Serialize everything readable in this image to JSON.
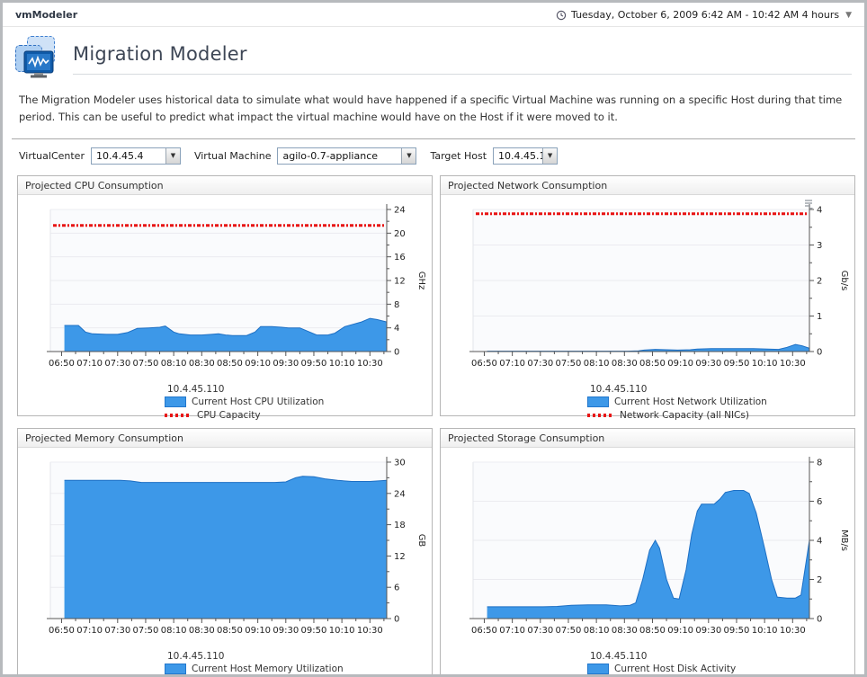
{
  "window": {
    "app_title": "vmModeler",
    "time_range": "Tuesday, October 6, 2009 6:42 AM - 10:42 AM 4 hours"
  },
  "page": {
    "title": "Migration Modeler",
    "description": "The Migration Modeler uses historical data to simulate what would have happened if a specific Virtual Machine was running on a specific Host during that time period. This can be useful to predict what impact the virtual machine would have on the Host if it were moved to it."
  },
  "controls": [
    {
      "label": "VirtualCenter",
      "value": "10.4.45.4"
    },
    {
      "label": "Virtual Machine",
      "value": "agilo-0.7-appliance"
    },
    {
      "label": "Target Host",
      "value": "10.4.45.110"
    }
  ],
  "colors": {
    "area_fill": "#3d98e8",
    "area_stroke": "#1d6fc4",
    "capacity": "#e81414",
    "grid": "#ebebf0",
    "axis": "#555555"
  },
  "chart_data": [
    {
      "type": "area",
      "title": "Projected CPU Consumption",
      "unit": "GHz",
      "ylim": [
        0,
        24
      ],
      "ytick_major": 4,
      "ytick_minor": 2,
      "capacity": 21.3,
      "host": "10.4.45.110",
      "legend": [
        {
          "swatch": "area",
          "label": "Current Host CPU Utilization"
        },
        {
          "swatch": "capacity",
          "label": "CPU Capacity"
        }
      ],
      "x_tick_labels": [
        "06:50",
        "07:10",
        "07:30",
        "07:50",
        "08:10",
        "08:30",
        "08:50",
        "09:10",
        "09:30",
        "09:50",
        "10:10",
        "10:30"
      ],
      "x_range_minutes": 240,
      "points": [
        [
          10,
          4.4
        ],
        [
          20,
          4.4
        ],
        [
          25,
          3.3
        ],
        [
          30,
          3.0
        ],
        [
          40,
          2.9
        ],
        [
          48,
          2.9
        ],
        [
          55,
          3.2
        ],
        [
          62,
          3.9
        ],
        [
          70,
          4.0
        ],
        [
          78,
          4.1
        ],
        [
          82,
          4.3
        ],
        [
          88,
          3.3
        ],
        [
          92,
          3.0
        ],
        [
          100,
          2.8
        ],
        [
          108,
          2.8
        ],
        [
          115,
          2.9
        ],
        [
          120,
          3.0
        ],
        [
          125,
          2.8
        ],
        [
          130,
          2.7
        ],
        [
          140,
          2.7
        ],
        [
          146,
          3.3
        ],
        [
          150,
          4.2
        ],
        [
          158,
          4.2
        ],
        [
          165,
          4.1
        ],
        [
          170,
          4.0
        ],
        [
          178,
          4.0
        ],
        [
          185,
          3.3
        ],
        [
          190,
          2.8
        ],
        [
          198,
          2.8
        ],
        [
          203,
          3.1
        ],
        [
          210,
          4.2
        ],
        [
          216,
          4.6
        ],
        [
          222,
          5.0
        ],
        [
          228,
          5.6
        ],
        [
          233,
          5.4
        ],
        [
          240,
          5.0
        ]
      ]
    },
    {
      "type": "area",
      "title": "Projected Network Consumption",
      "unit": "Gb/s",
      "ylim": [
        0,
        4
      ],
      "ytick_major": 1,
      "ytick_minor": 0.5,
      "capacity": 3.88,
      "host": "10.4.45.110",
      "legend": [
        {
          "swatch": "area",
          "label": "Current Host Network Utilization"
        },
        {
          "swatch": "capacity",
          "label": "Network Capacity (all NICs)"
        }
      ],
      "x_tick_labels": [
        "06:50",
        "07:10",
        "07:30",
        "07:50",
        "08:10",
        "08:30",
        "08:50",
        "09:10",
        "09:30",
        "09:50",
        "10:10",
        "10:30"
      ],
      "x_range_minutes": 240,
      "points": [
        [
          10,
          0.01
        ],
        [
          60,
          0.01
        ],
        [
          110,
          0.01
        ],
        [
          118,
          0.02
        ],
        [
          122,
          0.04
        ],
        [
          130,
          0.06
        ],
        [
          138,
          0.05
        ],
        [
          146,
          0.04
        ],
        [
          155,
          0.05
        ],
        [
          160,
          0.07
        ],
        [
          170,
          0.08
        ],
        [
          185,
          0.08
        ],
        [
          200,
          0.08
        ],
        [
          210,
          0.07
        ],
        [
          218,
          0.06
        ],
        [
          224,
          0.12
        ],
        [
          230,
          0.2
        ],
        [
          235,
          0.16
        ],
        [
          240,
          0.09
        ]
      ]
    },
    {
      "type": "area",
      "title": "Projected Memory Consumption",
      "unit": "GB",
      "ylim": [
        0,
        30
      ],
      "ytick_major": 6,
      "ytick_minor": 3,
      "capacity": null,
      "host": "10.4.45.110",
      "legend": [
        {
          "swatch": "area",
          "label": "Current Host Memory Utilization"
        }
      ],
      "x_tick_labels": [
        "06:50",
        "07:10",
        "07:30",
        "07:50",
        "08:10",
        "08:30",
        "08:50",
        "09:10",
        "09:30",
        "09:50",
        "10:10",
        "10:30"
      ],
      "x_range_minutes": 240,
      "points": [
        [
          10,
          26.5
        ],
        [
          30,
          26.5
        ],
        [
          50,
          26.5
        ],
        [
          57,
          26.4
        ],
        [
          65,
          26.1
        ],
        [
          80,
          26.1
        ],
        [
          100,
          26.1
        ],
        [
          120,
          26.1
        ],
        [
          140,
          26.1
        ],
        [
          160,
          26.1
        ],
        [
          168,
          26.2
        ],
        [
          175,
          27.0
        ],
        [
          180,
          27.3
        ],
        [
          188,
          27.2
        ],
        [
          196,
          26.8
        ],
        [
          205,
          26.5
        ],
        [
          215,
          26.3
        ],
        [
          228,
          26.3
        ],
        [
          240,
          26.5
        ]
      ]
    },
    {
      "type": "area",
      "title": "Projected Storage Consumption",
      "unit": "MB/s",
      "ylim": [
        0,
        8
      ],
      "ytick_major": 2,
      "ytick_minor": 1,
      "capacity": null,
      "host": "10.4.45.110",
      "legend": [
        {
          "swatch": "area",
          "label": "Current Host Disk Activity"
        }
      ],
      "x_tick_labels": [
        "06:50",
        "07:10",
        "07:30",
        "07:50",
        "08:10",
        "08:30",
        "08:50",
        "09:10",
        "09:30",
        "09:50",
        "10:10",
        "10:30"
      ],
      "x_range_minutes": 240,
      "points": [
        [
          10,
          0.6
        ],
        [
          30,
          0.6
        ],
        [
          50,
          0.6
        ],
        [
          60,
          0.62
        ],
        [
          70,
          0.68
        ],
        [
          82,
          0.7
        ],
        [
          95,
          0.7
        ],
        [
          105,
          0.65
        ],
        [
          112,
          0.68
        ],
        [
          116,
          0.8
        ],
        [
          121,
          2.0
        ],
        [
          126,
          3.5
        ],
        [
          130,
          4.0
        ],
        [
          133,
          3.6
        ],
        [
          138,
          2.0
        ],
        [
          143,
          1.05
        ],
        [
          147,
          1.0
        ],
        [
          152,
          2.5
        ],
        [
          156,
          4.3
        ],
        [
          160,
          5.5
        ],
        [
          163,
          5.85
        ],
        [
          172,
          5.85
        ],
        [
          176,
          6.1
        ],
        [
          180,
          6.45
        ],
        [
          186,
          6.55
        ],
        [
          193,
          6.55
        ],
        [
          197,
          6.4
        ],
        [
          202,
          5.4
        ],
        [
          208,
          3.6
        ],
        [
          213,
          2.0
        ],
        [
          217,
          1.1
        ],
        [
          224,
          1.05
        ],
        [
          230,
          1.05
        ],
        [
          234,
          1.2
        ],
        [
          240,
          4.0
        ]
      ]
    }
  ]
}
